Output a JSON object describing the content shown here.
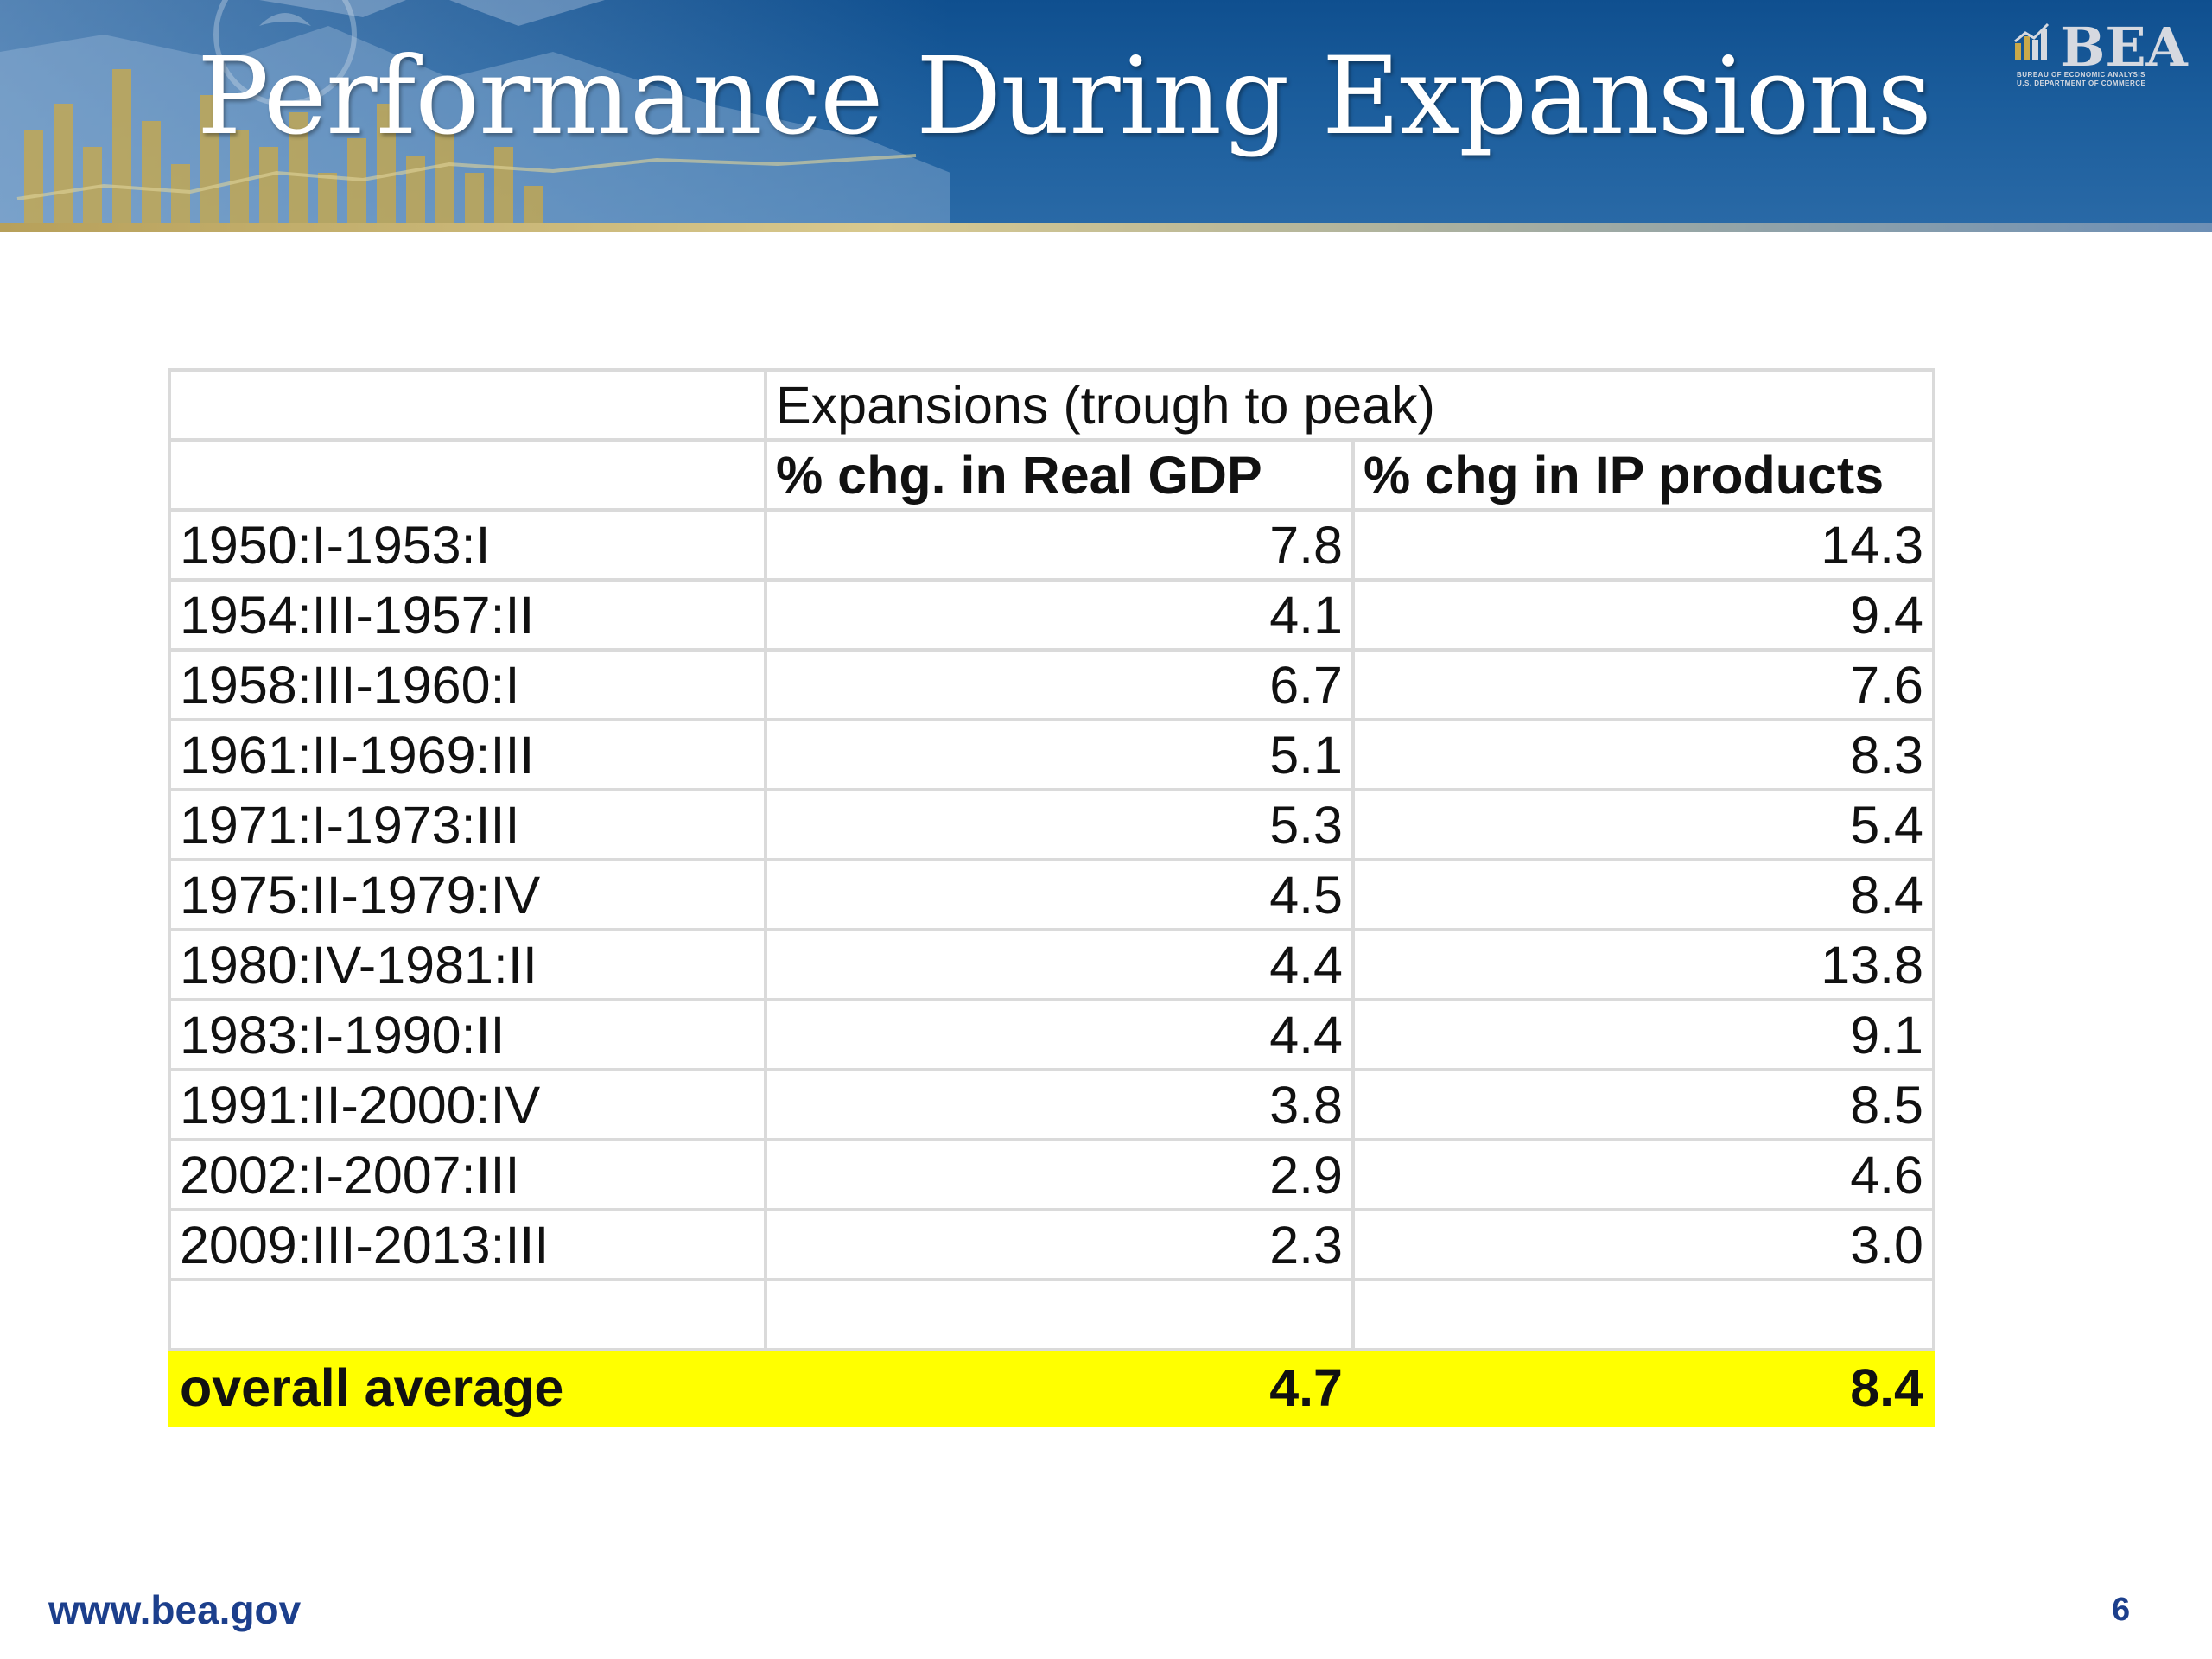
{
  "slide": {
    "title": "Performance During Expansions",
    "logo": {
      "name": "BEA",
      "line1": "BUREAU OF ECONOMIC ANALYSIS",
      "line2": "U.S. DEPARTMENT OF COMMERCE"
    },
    "footer_url": "www.bea.gov",
    "page_number": "6",
    "colors": {
      "banner": "#1b5d9c",
      "highlight": "#ffff00",
      "footer_text": "#1c3f8c"
    }
  },
  "table": {
    "group_header": "Expansions (trough to peak)",
    "col_gdp": "% chg. in Real GDP",
    "col_ip": "% chg in IP products",
    "rows": [
      {
        "period": "1950:I-1953:I",
        "gdp": "7.8",
        "ip": "14.3"
      },
      {
        "period": "1954:III-1957:II",
        "gdp": "4.1",
        "ip": "9.4"
      },
      {
        "period": "1958:III-1960:I",
        "gdp": "6.7",
        "ip": "7.6"
      },
      {
        "period": "1961:II-1969:III",
        "gdp": "5.1",
        "ip": "8.3"
      },
      {
        "period": "1971:I-1973:III",
        "gdp": "5.3",
        "ip": "5.4"
      },
      {
        "period": "1975:II-1979:IV",
        "gdp": "4.5",
        "ip": "8.4"
      },
      {
        "period": "1980:IV-1981:II",
        "gdp": "4.4",
        "ip": "13.8"
      },
      {
        "period": "1983:I-1990:II",
        "gdp": "4.4",
        "ip": "9.1"
      },
      {
        "period": "1991:II-2000:IV",
        "gdp": "3.8",
        "ip": "8.5"
      },
      {
        "period": "2002:I-2007:III",
        "gdp": "2.9",
        "ip": "4.6"
      },
      {
        "period": "2009:III-2013:III",
        "gdp": "2.3",
        "ip": "3.0"
      }
    ],
    "average": {
      "label": "overall average",
      "gdp": "4.7",
      "ip": "8.4"
    }
  }
}
